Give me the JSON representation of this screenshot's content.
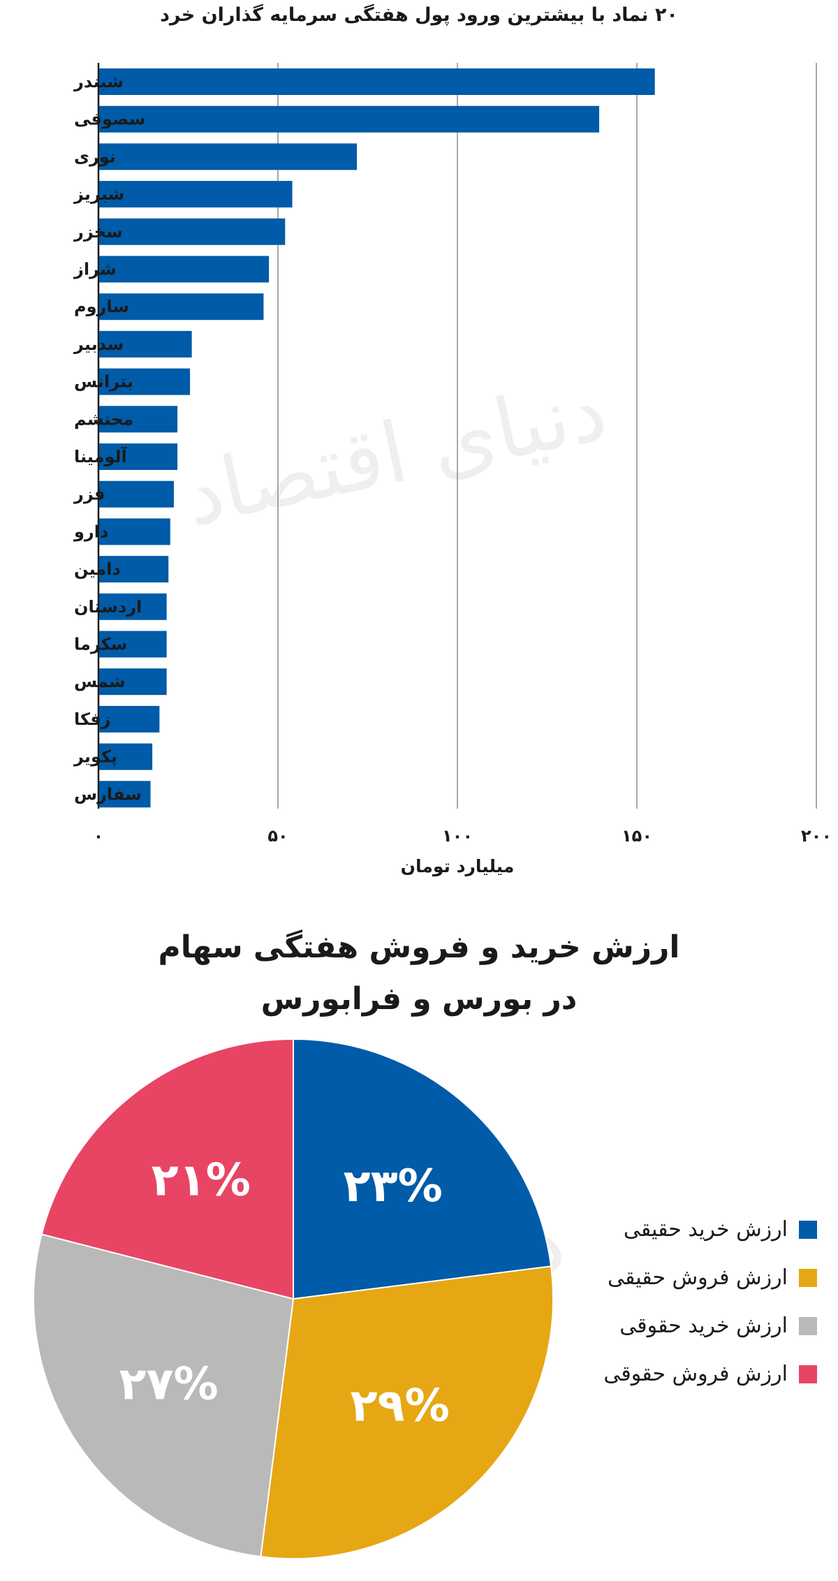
{
  "watermark": "دنیای اقتصاد",
  "chart_data": [
    {
      "type": "bar",
      "orientation": "horizontal",
      "title": "۲۰ نماد با بیشترین ورود پول هفتگی سرمایه گذاران خرد",
      "xlabel": "میلیارد تومان",
      "ylabel": "",
      "xlim": [
        0,
        200
      ],
      "xticks": [
        "۰",
        "۵۰",
        "۱۰۰",
        "۱۵۰",
        "۲۰۰"
      ],
      "grid": true,
      "color": "#005ba8",
      "categories": [
        "شبندر",
        "سصوفی",
        "نوری",
        "شبریز",
        "سخزر",
        "شراز",
        "ساروم",
        "سدبیر",
        "بترانس",
        "محتشم",
        "آلومینا",
        "فزر",
        "دارو",
        "دامین",
        "اردستان",
        "سکرما",
        "شمس",
        "زفکا",
        "پکویر",
        "سفارس"
      ],
      "values": [
        155,
        139.5,
        72,
        54,
        52,
        47.5,
        46,
        26,
        25.5,
        22,
        22,
        21,
        20,
        19.5,
        19,
        19,
        19,
        17,
        15,
        14.5
      ]
    },
    {
      "type": "pie",
      "title": "ارزش خرید و فروش هفتگی سهام در بورس و فرابورس",
      "title_lines": [
        "ارزش خرید و فروش هفتگی سهام",
        "در بورس و فرابورس"
      ],
      "legend_position": "right",
      "slices": [
        {
          "name": "ارزش خرید حقیقی",
          "value": 23,
          "label": "۲۳%",
          "color": "#005ba8"
        },
        {
          "name": "ارزش فروش حقیقی",
          "value": 29,
          "label": "۲۹%",
          "color": "#e5a714"
        },
        {
          "name": "ارزش خرید حقوقی",
          "value": 27,
          "label": "۲۷%",
          "color": "#b9b9b9"
        },
        {
          "name": "ارزش فروش حقوقی",
          "value": 21,
          "label": "۲۱%",
          "color": "#e84565"
        }
      ]
    }
  ]
}
